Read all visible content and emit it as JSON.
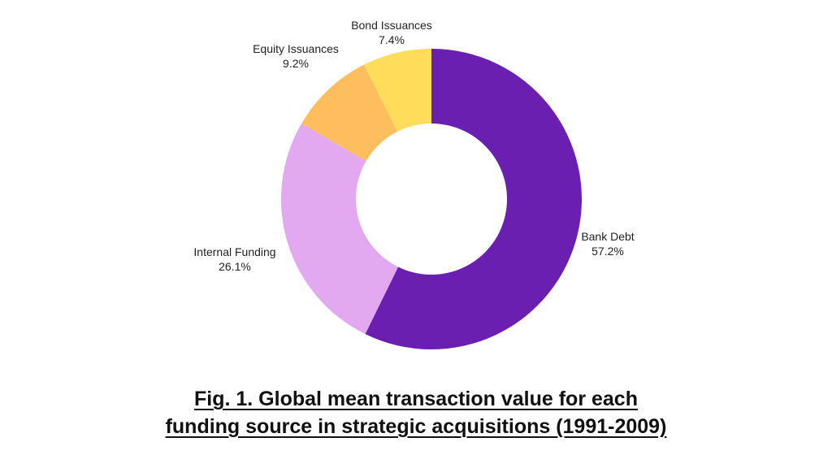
{
  "chart_data": {
    "type": "pie",
    "variant": "donut",
    "title": "Fig. 1. Global mean transaction value for each funding source in strategic acquisitions (1991-2009)",
    "title_lines": [
      "Fig. 1. Global mean transaction value for each",
      "funding source in strategic acquisitions (1991-2009)"
    ],
    "slices": [
      {
        "label": "Bank Debt",
        "value": 57.2,
        "display": "57.2%",
        "color": "#6a1fb0"
      },
      {
        "label": "Internal Funding",
        "value": 26.1,
        "display": "26.1%",
        "color": "#e2a8f0"
      },
      {
        "label": "Equity Issuances",
        "value": 9.2,
        "display": "9.2%",
        "color": "#ffbe5e"
      },
      {
        "label": "Bond Issuances",
        "value": 7.4,
        "display": "7.4%",
        "color": "#ffdc5a"
      }
    ],
    "start": "top",
    "direction": "clockwise"
  }
}
